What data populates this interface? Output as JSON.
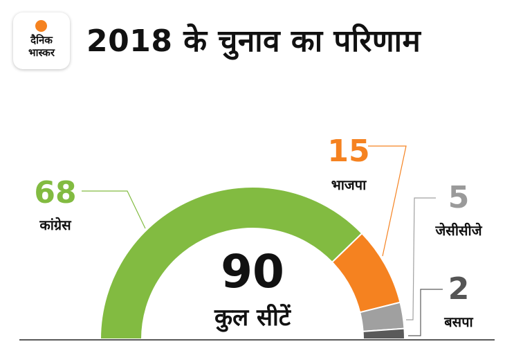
{
  "header": {
    "logo_line1": "दैनिक",
    "logo_line2": "भास्कर",
    "title": "2018 के चुनाव का परिणाम"
  },
  "chart_data": {
    "type": "semicircle-donut",
    "total_value": "90",
    "total_label": "कुल सीटें",
    "total_seats": 90,
    "parties": [
      {
        "name": "कांग्रेस",
        "seats": 68,
        "color": "#82bb41",
        "label_color": "#82bb41"
      },
      {
        "name": "भाजपा",
        "seats": 15,
        "color": "#f58220",
        "label_color": "#f58220"
      },
      {
        "name": "जेसीसीजे",
        "seats": 5,
        "color": "#a0a0a0",
        "label_color": "#9a9a9a"
      },
      {
        "name": "बसपा",
        "seats": 2,
        "color": "#5a5a5a",
        "label_color": "#555555"
      }
    ]
  }
}
